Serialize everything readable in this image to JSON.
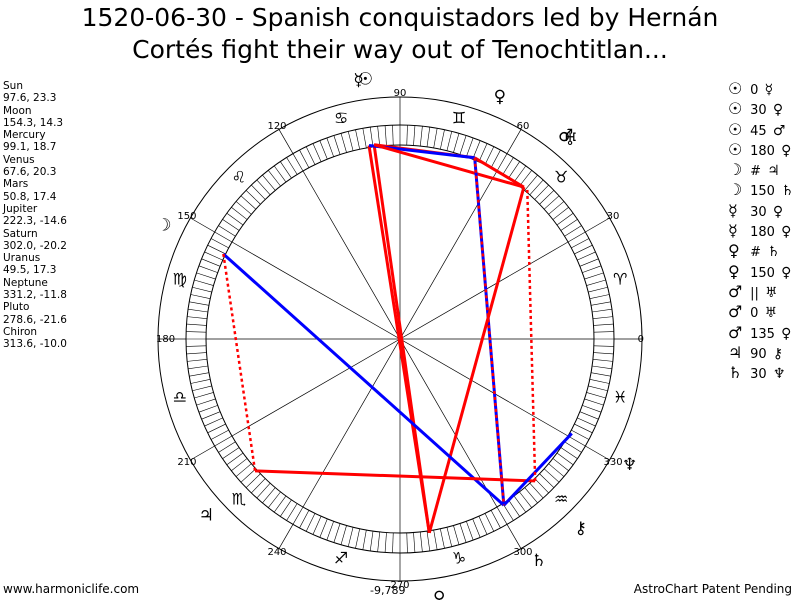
{
  "title_lines": [
    "1520-06-30 - Spanish conquistadors led by Hernán",
    "Cortés fight their way out of Tenochtitlan..."
  ],
  "planets": [
    {
      "name": "Sun",
      "value": "97.6, 23.3"
    },
    {
      "name": "Moon",
      "value": "154.3, 14.3"
    },
    {
      "name": "Mercury",
      "value": "99.1, 18.7"
    },
    {
      "name": "Venus",
      "value": "67.6, 20.3"
    },
    {
      "name": "Mars",
      "value": "50.8, 17.4"
    },
    {
      "name": "Jupiter",
      "value": "222.3, -14.6"
    },
    {
      "name": "Saturn",
      "value": "302.0, -20.2"
    },
    {
      "name": "Uranus",
      "value": "49.5, 17.3"
    },
    {
      "name": "Neptune",
      "value": "331.2, -11.8"
    },
    {
      "name": "Pluto",
      "value": "278.6, -21.6"
    },
    {
      "name": "Chiron",
      "value": "313.6, -10.0"
    }
  ],
  "aspects": [
    {
      "p1": "☉",
      "label": "0",
      "p2": "☿"
    },
    {
      "p1": "☉",
      "label": "30",
      "p2": "♀"
    },
    {
      "p1": "☉",
      "label": "45",
      "p2": "♂"
    },
    {
      "p1": "☉",
      "label": "180",
      "p2": "♀"
    },
    {
      "p1": "☽",
      "label": "#",
      "p2": "♃"
    },
    {
      "p1": "☽",
      "label": "150",
      "p2": "♄"
    },
    {
      "p1": "☿",
      "label": "30",
      "p2": "♀"
    },
    {
      "p1": "☿",
      "label": "180",
      "p2": "♀"
    },
    {
      "p1": "♀",
      "label": "#",
      "p2": "♄"
    },
    {
      "p1": "♀",
      "label": "150",
      "p2": "♀"
    },
    {
      "p1": "♂",
      "label": "||",
      "p2": "♅"
    },
    {
      "p1": "♂",
      "label": "0",
      "p2": "♅"
    },
    {
      "p1": "♂",
      "label": "135",
      "p2": "♀"
    },
    {
      "p1": "♃",
      "label": "90",
      "p2": "⚷"
    },
    {
      "p1": "♄",
      "label": "30",
      "p2": "♆"
    }
  ],
  "wheel": {
    "degree_labels": [
      "0",
      "30",
      "60",
      "90",
      "120",
      "150",
      "180",
      "210",
      "240",
      "270",
      "300",
      "330"
    ],
    "bottom_value": "-9,789",
    "zodiac_signs": [
      "♈",
      "♉",
      "♊",
      "♋",
      "♌",
      "♍",
      "♎",
      "♏",
      "♐",
      "♑",
      "♒",
      "♓"
    ],
    "planet_glyphs": [
      {
        "name": "Sun",
        "glyph": "☉",
        "lon": 97.6
      },
      {
        "name": "Mercury",
        "glyph": "☿",
        "lon": 99.1
      },
      {
        "name": "Moon",
        "glyph": "☽",
        "lon": 154.3
      },
      {
        "name": "Venus",
        "glyph": "♀",
        "lon": 67.6
      },
      {
        "name": "Mars",
        "glyph": "♂",
        "lon": 50.8
      },
      {
        "name": "Uranus",
        "glyph": "♅",
        "lon": 49.5
      },
      {
        "name": "Jupiter",
        "glyph": "♃",
        "lon": 222.3
      },
      {
        "name": "Saturn",
        "glyph": "♄",
        "lon": 302.0
      },
      {
        "name": "Neptune",
        "glyph": "♆",
        "lon": 331.2
      },
      {
        "name": "Pluto",
        "glyph": "♀",
        "lon": 278.6
      },
      {
        "name": "Chiron",
        "glyph": "⚷",
        "lon": 313.6
      }
    ],
    "aspect_lines": [
      {
        "from": 97.6,
        "to": 278.6,
        "color": "#ff0000",
        "style": "solid"
      },
      {
        "from": 99.1,
        "to": 278.6,
        "color": "#ff0000",
        "style": "solid"
      },
      {
        "from": 97.6,
        "to": 67.6,
        "color": "#ff0000",
        "style": "solid"
      },
      {
        "from": 99.1,
        "to": 67.6,
        "color": "#0000ff",
        "style": "solid"
      },
      {
        "from": 97.6,
        "to": 50.8,
        "color": "#ff0000",
        "style": "solid"
      },
      {
        "from": 67.6,
        "to": 50.8,
        "color": "#ff0000",
        "style": "solid"
      },
      {
        "from": 67.6,
        "to": 302.0,
        "color": "#0000ff",
        "style": "solid"
      },
      {
        "from": 50.8,
        "to": 278.6,
        "color": "#ff0000",
        "style": "solid"
      },
      {
        "from": 154.3,
        "to": 302.0,
        "color": "#0000ff",
        "style": "solid"
      },
      {
        "from": 154.3,
        "to": 222.3,
        "color": "#ff0000",
        "style": "dotted"
      },
      {
        "from": 222.3,
        "to": 313.6,
        "color": "#ff0000",
        "style": "solid"
      },
      {
        "from": 302.0,
        "to": 331.2,
        "color": "#0000ff",
        "style": "solid"
      },
      {
        "from": 49.5,
        "to": 313.6,
        "color": "#ff0000",
        "style": "dotted"
      },
      {
        "from": 67.6,
        "to": 302.0,
        "color": "#ff0000",
        "style": "dotted"
      }
    ]
  },
  "footer": {
    "left": "www.harmoniclife.com",
    "right": "AstroChart Patent Pending"
  }
}
